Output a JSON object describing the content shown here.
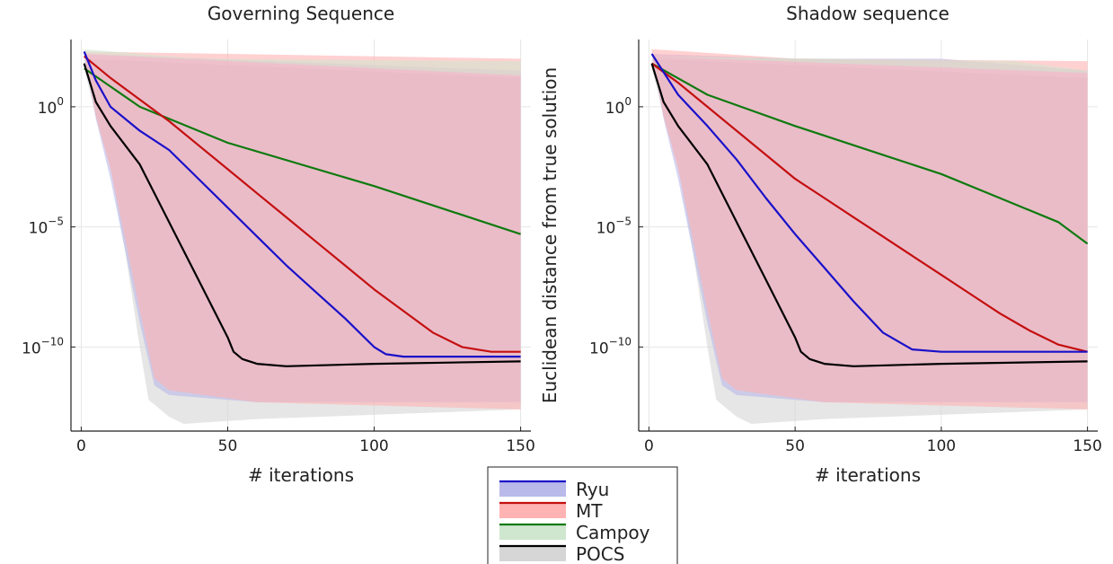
{
  "legend": {
    "position": "bottom-center",
    "entries": [
      {
        "name": "Ryu",
        "line_color": "#1a10c9",
        "band_color": "#b9b9ea"
      },
      {
        "name": "MT",
        "line_color": "#c40f0f",
        "band_color": "#ffb3b3"
      },
      {
        "name": "Campoy",
        "line_color": "#0f7a0f",
        "band_color": "#cfe6cf"
      },
      {
        "name": "POCS",
        "line_color": "#000000",
        "band_color": "#d6d6d6"
      }
    ]
  },
  "shared_ylabel": "Euclidean distance from true solution",
  "chart_data": [
    {
      "type": "line",
      "title": "Governing Sequence",
      "xlabel": "# iterations",
      "ylabel": "",
      "xlim": [
        0,
        150
      ],
      "ylim_log10": [
        -13.5,
        2.8
      ],
      "y_scale": "log",
      "x_ticks": [
        0,
        50,
        100,
        150
      ],
      "y_ticks": [
        {
          "base": "10",
          "exp": "0",
          "log10": 0
        },
        {
          "base": "10",
          "exp": "−5",
          "log10": -5
        },
        {
          "base": "10",
          "exp": "−10",
          "log10": -10
        }
      ],
      "grid": true,
      "series": [
        {
          "name": "Ryu",
          "color": "#1a10c9",
          "median": [
            [
              1,
              2.3
            ],
            [
              5,
              1.1
            ],
            [
              10,
              0
            ],
            [
              20,
              -1
            ],
            [
              30,
              -1.8
            ],
            [
              40,
              -3
            ],
            [
              50,
              -4.2
            ],
            [
              60,
              -5.4
            ],
            [
              70,
              -6.6
            ],
            [
              80,
              -7.7
            ],
            [
              90,
              -8.8
            ],
            [
              100,
              -10
            ],
            [
              104,
              -10.3
            ],
            [
              110,
              -10.4
            ],
            [
              120,
              -10.4
            ],
            [
              150,
              -10.4
            ]
          ],
          "band_upper": [
            [
              1,
              2.2
            ],
            [
              150,
              1.5
            ]
          ],
          "band_lower": [
            [
              1,
              2.2
            ],
            [
              5,
              -0.5
            ],
            [
              10,
              -3
            ],
            [
              15,
              -6
            ],
            [
              20,
              -9
            ],
            [
              25,
              -11.6
            ],
            [
              30,
              -12
            ],
            [
              60,
              -12.3
            ],
            [
              150,
              -12.3
            ]
          ]
        },
        {
          "name": "MT",
          "color": "#c40f0f",
          "median": [
            [
              1,
              2.1
            ],
            [
              10,
              1.2
            ],
            [
              20,
              0.3
            ],
            [
              30,
              -0.6
            ],
            [
              40,
              -1.6
            ],
            [
              50,
              -2.6
            ],
            [
              60,
              -3.6
            ],
            [
              70,
              -4.6
            ],
            [
              80,
              -5.6
            ],
            [
              90,
              -6.6
            ],
            [
              100,
              -7.6
            ],
            [
              110,
              -8.5
            ],
            [
              120,
              -9.4
            ],
            [
              130,
              -10
            ],
            [
              140,
              -10.2
            ],
            [
              150,
              -10.2
            ]
          ],
          "band_upper": [
            [
              1,
              2.3
            ],
            [
              150,
              2.0
            ]
          ],
          "band_lower": [
            [
              1,
              2.2
            ],
            [
              5,
              -0.4
            ],
            [
              10,
              -2.6
            ],
            [
              15,
              -5.5
            ],
            [
              20,
              -8.5
            ],
            [
              25,
              -11.3
            ],
            [
              30,
              -11.8
            ],
            [
              60,
              -12.3
            ],
            [
              150,
              -12.6
            ]
          ]
        },
        {
          "name": "Campoy",
          "color": "#0f7a0f",
          "median": [
            [
              1,
              1.6
            ],
            [
              20,
              0
            ],
            [
              50,
              -1.5
            ],
            [
              100,
              -3.3
            ],
            [
              150,
              -5.3
            ]
          ],
          "band_upper": [
            [
              1,
              2.4
            ],
            [
              40,
              2.0
            ],
            [
              150,
              1.9
            ]
          ],
          "band_lower": [
            [
              1,
              2.2
            ],
            [
              150,
              1.3
            ]
          ]
        },
        {
          "name": "POCS",
          "color": "#000000",
          "median": [
            [
              1,
              1.8
            ],
            [
              5,
              0.2
            ],
            [
              10,
              -0.8
            ],
            [
              20,
              -2.4
            ],
            [
              30,
              -4.8
            ],
            [
              40,
              -7.2
            ],
            [
              50,
              -9.6
            ],
            [
              52,
              -10.2
            ],
            [
              55,
              -10.5
            ],
            [
              60,
              -10.7
            ],
            [
              70,
              -10.8
            ],
            [
              100,
              -10.7
            ],
            [
              150,
              -10.6
            ]
          ],
          "band_upper": [
            [
              1,
              2.0
            ],
            [
              150,
              1.2
            ]
          ],
          "band_lower": [
            [
              1,
              1.6
            ],
            [
              5,
              -0.4
            ],
            [
              10,
              -2.5
            ],
            [
              15,
              -6
            ],
            [
              20,
              -10
            ],
            [
              23,
              -12.2
            ],
            [
              30,
              -12.9
            ],
            [
              35,
              -13.2
            ],
            [
              60,
              -13
            ],
            [
              150,
              -12.6
            ]
          ]
        }
      ]
    },
    {
      "type": "line",
      "title": "Shadow sequence",
      "xlabel": "# iterations",
      "ylabel": "",
      "xlim": [
        0,
        150
      ],
      "ylim_log10": [
        -13.5,
        2.8
      ],
      "y_scale": "log",
      "x_ticks": [
        0,
        50,
        100,
        150
      ],
      "y_ticks": [
        {
          "base": "10",
          "exp": "0",
          "log10": 0
        },
        {
          "base": "10",
          "exp": "−5",
          "log10": -5
        },
        {
          "base": "10",
          "exp": "−10",
          "log10": -10
        }
      ],
      "grid": true,
      "series": [
        {
          "name": "Ryu",
          "color": "#1a10c9",
          "median": [
            [
              1,
              2.2
            ],
            [
              10,
              0.5
            ],
            [
              20,
              -0.8
            ],
            [
              30,
              -2.2
            ],
            [
              40,
              -3.8
            ],
            [
              50,
              -5.3
            ],
            [
              60,
              -6.7
            ],
            [
              70,
              -8.1
            ],
            [
              80,
              -9.4
            ],
            [
              90,
              -10.1
            ],
            [
              100,
              -10.2
            ],
            [
              150,
              -10.2
            ]
          ],
          "band_upper": [
            [
              1,
              2.2
            ],
            [
              50,
              2.0
            ],
            [
              100,
              2.0
            ],
            [
              150,
              1.5
            ]
          ],
          "band_lower": [
            [
              1,
              2.2
            ],
            [
              5,
              -0.5
            ],
            [
              10,
              -3
            ],
            [
              15,
              -6
            ],
            [
              20,
              -9
            ],
            [
              25,
              -11.6
            ],
            [
              30,
              -12
            ],
            [
              60,
              -12.3
            ],
            [
              150,
              -12.3
            ]
          ]
        },
        {
          "name": "MT",
          "color": "#c40f0f",
          "median": [
            [
              1,
              1.8
            ],
            [
              10,
              1
            ],
            [
              20,
              0
            ],
            [
              30,
              -1
            ],
            [
              40,
              -2
            ],
            [
              50,
              -3
            ],
            [
              60,
              -3.8
            ],
            [
              70,
              -4.6
            ],
            [
              80,
              -5.4
            ],
            [
              90,
              -6.2
            ],
            [
              100,
              -7
            ],
            [
              110,
              -7.8
            ],
            [
              120,
              -8.6
            ],
            [
              130,
              -9.3
            ],
            [
              140,
              -9.9
            ],
            [
              150,
              -10.2
            ]
          ],
          "band_upper": [
            [
              1,
              2.4
            ],
            [
              50,
              2.0
            ],
            [
              150,
              1.9
            ]
          ],
          "band_lower": [
            [
              1,
              2.2
            ],
            [
              5,
              -0.4
            ],
            [
              10,
              -2.6
            ],
            [
              15,
              -5.5
            ],
            [
              20,
              -8.5
            ],
            [
              25,
              -11.3
            ],
            [
              30,
              -11.8
            ],
            [
              60,
              -12.3
            ],
            [
              150,
              -12.6
            ]
          ]
        },
        {
          "name": "Campoy",
          "color": "#0f7a0f",
          "median": [
            [
              1,
              1.8
            ],
            [
              20,
              0.5
            ],
            [
              50,
              -0.8
            ],
            [
              80,
              -2
            ],
            [
              100,
              -2.8
            ],
            [
              120,
              -3.8
            ],
            [
              140,
              -4.8
            ],
            [
              150,
              -5.7
            ]
          ],
          "band_upper": [
            [
              1,
              2.1
            ],
            [
              60,
              2.0
            ],
            [
              125,
              1.9
            ],
            [
              150,
              1.5
            ]
          ],
          "band_lower": [
            [
              1,
              2.1
            ],
            [
              150,
              1.4
            ]
          ]
        },
        {
          "name": "POCS",
          "color": "#000000",
          "median": [
            [
              1,
              1.8
            ],
            [
              5,
              0.2
            ],
            [
              10,
              -0.8
            ],
            [
              20,
              -2.4
            ],
            [
              30,
              -4.8
            ],
            [
              40,
              -7.2
            ],
            [
              50,
              -9.6
            ],
            [
              52,
              -10.2
            ],
            [
              55,
              -10.5
            ],
            [
              60,
              -10.7
            ],
            [
              70,
              -10.8
            ],
            [
              100,
              -10.7
            ],
            [
              150,
              -10.6
            ]
          ],
          "band_upper": [
            [
              1,
              2.0
            ],
            [
              150,
              1.2
            ]
          ],
          "band_lower": [
            [
              1,
              1.6
            ],
            [
              5,
              -0.4
            ],
            [
              10,
              -2.5
            ],
            [
              15,
              -6
            ],
            [
              20,
              -10
            ],
            [
              23,
              -12.2
            ],
            [
              30,
              -12.9
            ],
            [
              35,
              -13.2
            ],
            [
              60,
              -13
            ],
            [
              150,
              -12.6
            ]
          ]
        }
      ]
    }
  ]
}
